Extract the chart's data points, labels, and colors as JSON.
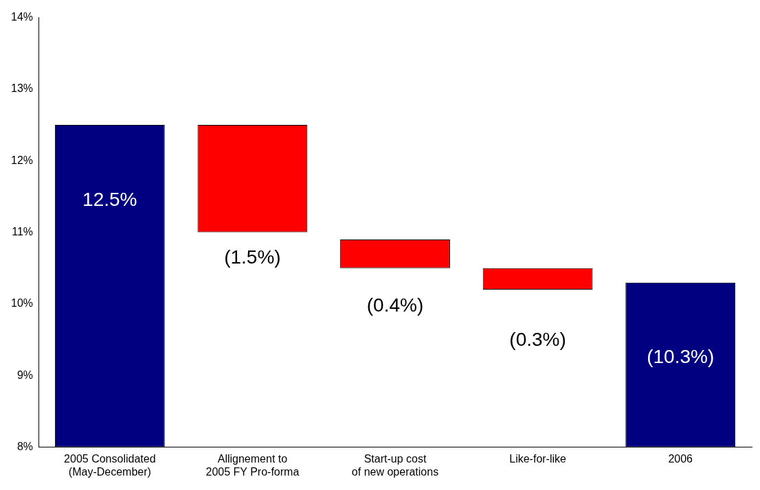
{
  "chart_data": {
    "type": "bar",
    "categories": [
      "2005 Consolidated\n(May-December)",
      "Allignement to\n2005 FY Pro-forma",
      "Start-up cost\nof new operations",
      "Like-for-like",
      "2006"
    ],
    "base": [
      8,
      12.5,
      10.9,
      10.5,
      8
    ],
    "values": [
      4.5,
      -1.5,
      -0.4,
      -0.3,
      2.3
    ],
    "colors": [
      "#000080",
      "#ff0000",
      "#ff0000",
      "#ff0000",
      "#000080"
    ],
    "value_labels": [
      "12.5%",
      "(1.5%)",
      "(0.4%)",
      "(0.3%)",
      "(10.3%)"
    ],
    "ylim": [
      8,
      14
    ],
    "yticks": [
      {
        "value": 8,
        "label": "8%"
      },
      {
        "value": 9,
        "label": "9%"
      },
      {
        "value": 10,
        "label": "10%"
      },
      {
        "value": 11,
        "label": "11%"
      },
      {
        "value": 12,
        "label": "12%"
      },
      {
        "value": 13,
        "label": "13%"
      },
      {
        "value": 14,
        "label": "14%"
      }
    ],
    "grid": false,
    "legend": false
  }
}
